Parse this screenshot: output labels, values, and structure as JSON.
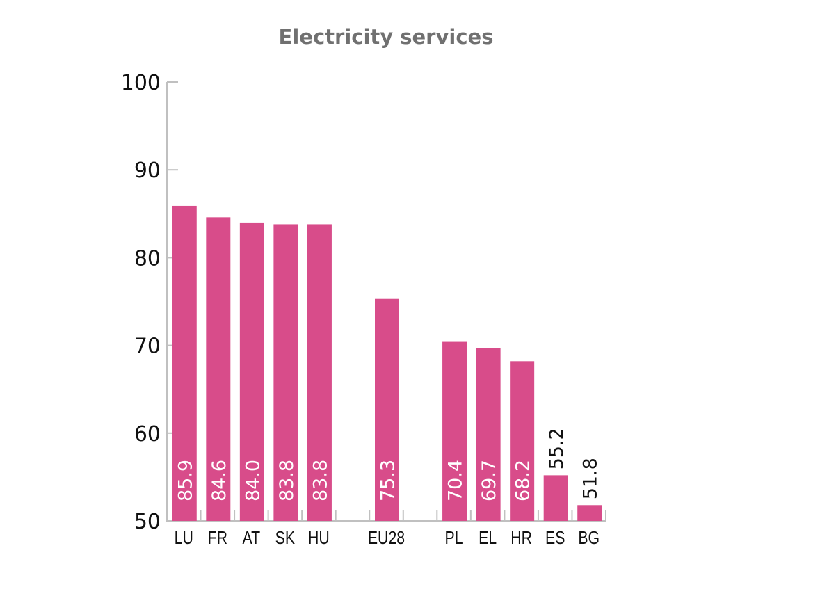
{
  "chart_data": {
    "type": "bar",
    "title": "Electricity services",
    "xlabel": "",
    "ylabel": "",
    "ylim": [
      50,
      100
    ],
    "yticks": [
      50,
      60,
      70,
      80,
      90,
      100
    ],
    "grid": false,
    "categories": [
      "LU",
      "FR",
      "AT",
      "SK",
      "HU",
      "",
      "EU28",
      "",
      "PL",
      "EL",
      "HR",
      "ES",
      "BG"
    ],
    "values": [
      85.9,
      84.6,
      84.0,
      83.8,
      83.8,
      null,
      75.3,
      null,
      70.4,
      69.7,
      68.2,
      55.2,
      51.8
    ],
    "value_labels": [
      "85.9",
      "84.6",
      "84.0",
      "83.8",
      "83.8",
      "",
      "75.3",
      "",
      "70.4",
      "69.7",
      "68.2",
      "55.2",
      "51.8"
    ],
    "bar_color": "#d84c8a",
    "axis_color": "#c0c0c0"
  }
}
